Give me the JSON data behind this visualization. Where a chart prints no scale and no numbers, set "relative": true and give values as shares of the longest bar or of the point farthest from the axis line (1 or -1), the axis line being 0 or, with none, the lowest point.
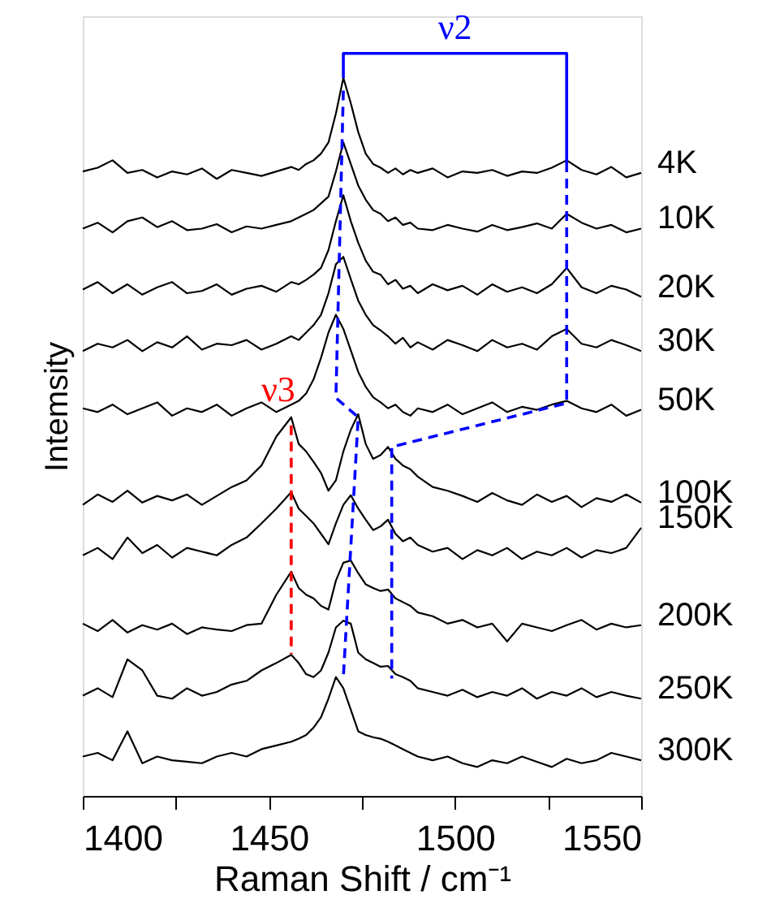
{
  "chart_data": {
    "type": "line",
    "relative": true,
    "xlabel": "Raman Shift / cm⁻¹",
    "ylabel": "Intemsity",
    "xlim": [
      1400,
      1550
    ],
    "xticks": [
      1400,
      {
        "value": 1425,
        "label": null
      },
      1450,
      {
        "value": 1475,
        "label": null
      },
      1500,
      {
        "value": 1525,
        "label": null
      },
      1550
    ],
    "grid": false,
    "legend": false,
    "marker": "none",
    "x": [
      1400,
      1404,
      1408,
      1412,
      1416,
      1420,
      1424,
      1428,
      1432,
      1436,
      1440,
      1444,
      1448,
      1452,
      1456,
      1458,
      1460,
      1462,
      1464,
      1466,
      1468,
      1470,
      1472,
      1474,
      1476,
      1478,
      1480,
      1482,
      1484,
      1486,
      1488,
      1490,
      1494,
      1498,
      1502,
      1506,
      1510,
      1514,
      1518,
      1522,
      1526,
      1530,
      1534,
      1538,
      1542,
      1546,
      1550
    ],
    "series": [
      {
        "name": "4K",
        "color": "#000000",
        "values": [
          0.841,
          0.846,
          0.856,
          0.839,
          0.843,
          0.833,
          0.841,
          0.837,
          0.845,
          0.831,
          0.843,
          0.839,
          0.835,
          0.841,
          0.847,
          0.843,
          0.851,
          0.856,
          0.865,
          0.88,
          0.919,
          0.967,
          0.933,
          0.894,
          0.865,
          0.851,
          0.846,
          0.839,
          0.845,
          0.837,
          0.843,
          0.839,
          0.845,
          0.833,
          0.841,
          0.839,
          0.843,
          0.835,
          0.841,
          0.839,
          0.846,
          0.856,
          0.843,
          0.837,
          0.847,
          0.833,
          0.839
        ]
      },
      {
        "name": "10K",
        "color": "#000000",
        "values": [
          0.764,
          0.772,
          0.759,
          0.774,
          0.779,
          0.766,
          0.774,
          0.762,
          0.764,
          0.77,
          0.759,
          0.767,
          0.764,
          0.769,
          0.774,
          0.779,
          0.784,
          0.789,
          0.798,
          0.807,
          0.841,
          0.88,
          0.851,
          0.822,
          0.803,
          0.789,
          0.784,
          0.774,
          0.779,
          0.769,
          0.772,
          0.764,
          0.762,
          0.769,
          0.764,
          0.76,
          0.769,
          0.762,
          0.766,
          0.771,
          0.764,
          0.784,
          0.772,
          0.764,
          0.769,
          0.759,
          0.764
        ]
      },
      {
        "name": "20K",
        "color": "#000000",
        "values": [
          0.682,
          0.692,
          0.677,
          0.689,
          0.675,
          0.685,
          0.692,
          0.677,
          0.68,
          0.689,
          0.675,
          0.683,
          0.687,
          0.679,
          0.692,
          0.689,
          0.695,
          0.702,
          0.711,
          0.735,
          0.774,
          0.809,
          0.774,
          0.745,
          0.721,
          0.706,
          0.702,
          0.689,
          0.695,
          0.683,
          0.687,
          0.677,
          0.689,
          0.681,
          0.687,
          0.675,
          0.689,
          0.679,
          0.685,
          0.677,
          0.689,
          0.711,
          0.685,
          0.677,
          0.687,
          0.682,
          0.672
        ]
      },
      {
        "name": "30K",
        "color": "#000000",
        "values": [
          0.599,
          0.609,
          0.604,
          0.614,
          0.599,
          0.611,
          0.604,
          0.619,
          0.601,
          0.609,
          0.607,
          0.614,
          0.601,
          0.609,
          0.619,
          0.614,
          0.624,
          0.634,
          0.648,
          0.677,
          0.716,
          0.726,
          0.696,
          0.667,
          0.648,
          0.634,
          0.627,
          0.619,
          0.609,
          0.617,
          0.604,
          0.611,
          0.601,
          0.614,
          0.607,
          0.599,
          0.614,
          0.604,
          0.609,
          0.601,
          0.619,
          0.629,
          0.609,
          0.604,
          0.614,
          0.607,
          0.599
        ]
      },
      {
        "name": "50K",
        "color": "#000000",
        "values": [
          0.522,
          0.517,
          0.527,
          0.514,
          0.522,
          0.53,
          0.512,
          0.522,
          0.517,
          0.527,
          0.512,
          0.522,
          0.53,
          0.517,
          0.527,
          0.532,
          0.542,
          0.561,
          0.59,
          0.624,
          0.648,
          0.629,
          0.6,
          0.571,
          0.551,
          0.537,
          0.53,
          0.522,
          0.527,
          0.517,
          0.512,
          0.522,
          0.517,
          0.527,
          0.514,
          0.522,
          0.53,
          0.517,
          0.524,
          0.52,
          0.527,
          0.532,
          0.522,
          0.517,
          0.527,
          0.512,
          0.52
        ]
      },
      {
        "name": "100K",
        "color": "#000000",
        "values": [
          0.392,
          0.406,
          0.396,
          0.411,
          0.395,
          0.404,
          0.398,
          0.406,
          0.392,
          0.404,
          0.416,
          0.425,
          0.445,
          0.484,
          0.51,
          0.474,
          0.464,
          0.45,
          0.435,
          0.411,
          0.425,
          0.464,
          0.493,
          0.514,
          0.474,
          0.454,
          0.459,
          0.47,
          0.454,
          0.445,
          0.44,
          0.43,
          0.416,
          0.411,
          0.404,
          0.396,
          0.408,
          0.398,
          0.392,
          0.406,
          0.396,
          0.404,
          0.389,
          0.401,
          0.396,
          0.406,
          0.395
        ]
      },
      {
        "name": "150K",
        "color": "#000000",
        "values": [
          0.324,
          0.334,
          0.319,
          0.348,
          0.327,
          0.338,
          0.321,
          0.334,
          0.329,
          0.324,
          0.338,
          0.348,
          0.367,
          0.387,
          0.409,
          0.387,
          0.377,
          0.367,
          0.353,
          0.339,
          0.367,
          0.392,
          0.405,
          0.387,
          0.372,
          0.358,
          0.363,
          0.372,
          0.353,
          0.343,
          0.348,
          0.338,
          0.329,
          0.334,
          0.319,
          0.331,
          0.324,
          0.334,
          0.319,
          0.329,
          0.324,
          0.334,
          0.321,
          0.331,
          0.327,
          0.334,
          0.361
        ]
      },
      {
        "name": "200K",
        "color": "#000000",
        "values": [
          0.232,
          0.222,
          0.237,
          0.22,
          0.23,
          0.224,
          0.232,
          0.218,
          0.227,
          0.224,
          0.222,
          0.23,
          0.232,
          0.271,
          0.302,
          0.28,
          0.271,
          0.266,
          0.256,
          0.251,
          0.29,
          0.314,
          0.317,
          0.3,
          0.285,
          0.28,
          0.276,
          0.278,
          0.266,
          0.261,
          0.256,
          0.247,
          0.242,
          0.232,
          0.237,
          0.227,
          0.232,
          0.208,
          0.232,
          0.227,
          0.222,
          0.23,
          0.237,
          0.224,
          0.232,
          0.227,
          0.23
        ]
      },
      {
        "name": "250K",
        "color": "#000000",
        "values": [
          0.135,
          0.145,
          0.133,
          0.184,
          0.169,
          0.135,
          0.131,
          0.145,
          0.135,
          0.14,
          0.15,
          0.155,
          0.169,
          0.179,
          0.19,
          0.179,
          0.164,
          0.16,
          0.169,
          0.193,
          0.227,
          0.236,
          0.232,
          0.193,
          0.184,
          0.179,
          0.174,
          0.175,
          0.164,
          0.16,
          0.155,
          0.145,
          0.14,
          0.135,
          0.143,
          0.133,
          0.14,
          0.135,
          0.145,
          0.131,
          0.14,
          0.135,
          0.145,
          0.133,
          0.14,
          0.135,
          0.131
        ]
      },
      {
        "name": "300K",
        "color": "#000000",
        "values": [
          0.053,
          0.058,
          0.048,
          0.087,
          0.044,
          0.053,
          0.048,
          0.046,
          0.044,
          0.053,
          0.058,
          0.053,
          0.063,
          0.068,
          0.073,
          0.077,
          0.082,
          0.092,
          0.106,
          0.131,
          0.16,
          0.145,
          0.116,
          0.087,
          0.082,
          0.079,
          0.077,
          0.073,
          0.068,
          0.063,
          0.058,
          0.053,
          0.048,
          0.053,
          0.044,
          0.039,
          0.048,
          0.044,
          0.053,
          0.046,
          0.039,
          0.05,
          0.044,
          0.048,
          0.058,
          0.053,
          0.048
        ]
      },
      {
        "name": "ν2",
        "type": "line",
        "color": "#0000ff",
        "line_style": "solid",
        "x": [
          1470,
          1470,
          1530,
          1530
        ],
        "values": [
          0.967,
          1.0,
          1.0,
          0.853
        ]
      },
      {
        "type": "line",
        "color": "#0000ff",
        "line_style": "dashed",
        "x": [
          1470,
          1468,
          1474,
          1470
        ],
        "values": [
          0.95,
          0.536,
          0.51,
          0.16
        ]
      },
      {
        "type": "line",
        "color": "#0000ff",
        "line_style": "dashed",
        "x": [
          1530,
          1530,
          1483,
          1483
        ],
        "values": [
          0.853,
          0.529,
          0.47,
          0.158
        ]
      },
      {
        "name": "ν3",
        "type": "line",
        "color": "#ff0000",
        "line_style": "dashed",
        "x": [
          1456,
          1456
        ],
        "values": [
          0.499,
          0.191
        ]
      }
    ]
  }
}
